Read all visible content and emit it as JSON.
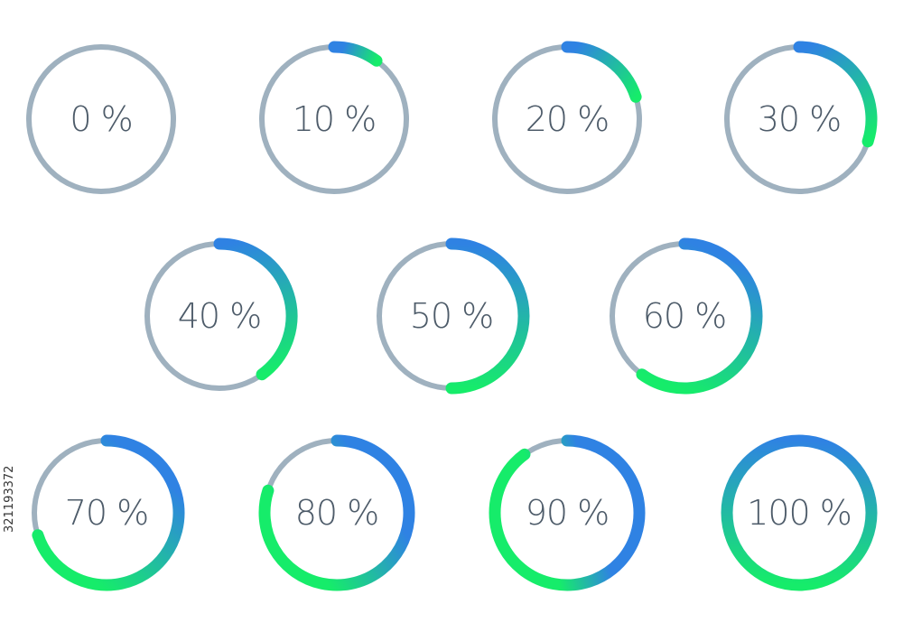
{
  "range": [
    0,
    100
  ],
  "rings": [
    {
      "value": 0,
      "label": "0 %"
    },
    {
      "value": 10,
      "label": "10 %"
    },
    {
      "value": 20,
      "label": "20 %"
    },
    {
      "value": 30,
      "label": "30 %"
    },
    {
      "value": 40,
      "label": "40 %"
    },
    {
      "value": 50,
      "label": "50 %"
    },
    {
      "value": 60,
      "label": "60 %"
    },
    {
      "value": 70,
      "label": "70 %"
    },
    {
      "value": 80,
      "label": "80 %"
    },
    {
      "value": 90,
      "label": "90 %"
    },
    {
      "value": 100,
      "label": "100 %"
    }
  ],
  "stock_id": "321193372"
}
